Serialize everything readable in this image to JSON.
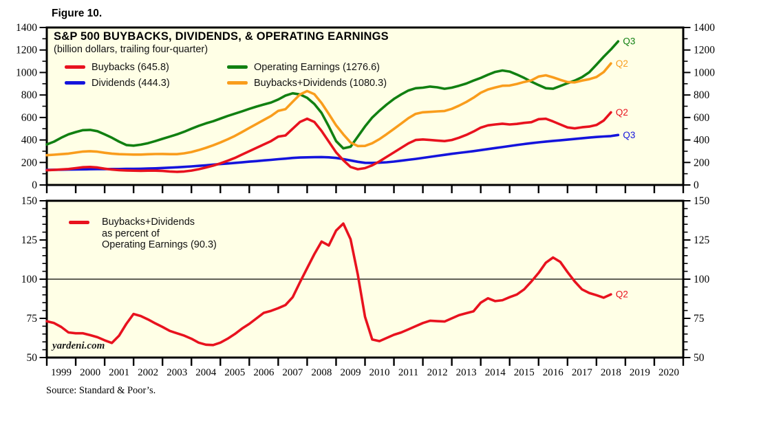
{
  "figure_label": "Figure 10.",
  "watermark": "yardeni.com",
  "source_note": "Source: Standard & Poor’s.",
  "colors": {
    "buybacks": "#E8121E",
    "dividends": "#1414DC",
    "operating_earnings": "#118011",
    "buybacks_plus_dividends": "#F99D1C",
    "plot_background": "#FFFFE6",
    "frame": "#000000"
  },
  "top_chart": {
    "title": "S&P 500 BUYBACKS, DIVIDENDS, & OPERATING EARNINGS",
    "subtitle": "(billion dollars, trailing four-quarter)",
    "legend": [
      {
        "label": "Buybacks (645.8)",
        "color": "#E8121E"
      },
      {
        "label": "Operating Earnings (1276.6)",
        "color": "#118011"
      },
      {
        "label": "Dividends (444.3)",
        "color": "#1414DC"
      },
      {
        "label": "Buybacks+Dividends (1080.3)",
        "color": "#F99D1C"
      }
    ]
  },
  "bottom_chart": {
    "legend_lines": [
      "Buybacks+Dividends",
      "as percent of",
      "Operating Earnings (90.3)"
    ],
    "legend_color": "#E8121E"
  },
  "chart_data": [
    {
      "type": "line",
      "title": "S&P 500 BUYBACKS, DIVIDENDS, & OPERATING EARNINGS",
      "subtitle": "(billion dollars, trailing four-quarter)",
      "units": "billion dollars, trailing four-quarter",
      "xlim": [
        1999,
        2021
      ],
      "ylim": [
        0,
        1400
      ],
      "ytick_major": 200,
      "ytick_minor": 100,
      "x_start": 1999.0,
      "x_step": 0.25,
      "grid": false,
      "legend_position": "top-left",
      "series": [
        {
          "name": "Operating Earnings",
          "color": "#118011",
          "end_label": "Q3",
          "latest": 1276.6,
          "values": [
            360,
            385,
            420,
            450,
            470,
            487,
            490,
            478,
            450,
            420,
            385,
            355,
            350,
            358,
            372,
            390,
            410,
            430,
            450,
            473,
            500,
            525,
            548,
            567,
            590,
            613,
            634,
            655,
            677,
            697,
            715,
            733,
            760,
            795,
            815,
            805,
            775,
            720,
            640,
            520,
            390,
            325,
            340,
            430,
            520,
            600,
            660,
            715,
            765,
            805,
            840,
            860,
            865,
            875,
            868,
            855,
            865,
            882,
            902,
            928,
            952,
            980,
            1005,
            1018,
            1008,
            982,
            952,
            918,
            888,
            860,
            855,
            880,
            905,
            928,
            958,
            1002,
            1070,
            1140,
            1205,
            1276.6
          ]
        },
        {
          "name": "Buybacks+Dividends",
          "color": "#F99D1C",
          "end_label": "Q2",
          "latest": 1080.3,
          "values": [
            265,
            269,
            274,
            279,
            288,
            297,
            300,
            296,
            286,
            279,
            274,
            272,
            270,
            270,
            273,
            275,
            276,
            274,
            274,
            281,
            293,
            310,
            330,
            353,
            378,
            406,
            436,
            471,
            507,
            542,
            578,
            613,
            659,
            674,
            740,
            804,
            835,
            807,
            728,
            631,
            530,
            450,
            378,
            346,
            347,
            371,
            408,
            452,
            498,
            546,
            594,
            632,
            646,
            650,
            654,
            658,
            677,
            705,
            738,
            776,
            820,
            849,
            866,
            882,
            884,
            898,
            916,
            930,
            964,
            975,
            957,
            935,
            915,
            912,
            928,
            940,
            960,
            1004,
            1080.3
          ]
        },
        {
          "name": "Dividends",
          "color": "#1414DC",
          "end_label": "Q3",
          "latest": 444.3,
          "values": [
            134,
            135,
            136,
            137,
            138,
            139,
            140,
            141,
            141,
            142,
            142,
            143,
            143,
            144,
            146,
            148,
            151,
            154,
            157,
            161,
            165,
            170,
            175,
            181,
            186,
            191,
            196,
            201,
            207,
            212,
            218,
            223,
            229,
            234,
            240,
            244,
            246,
            247,
            248,
            246,
            240,
            230,
            218,
            206,
            197,
            196,
            198,
            202,
            208,
            216,
            224,
            232,
            241,
            250,
            259,
            268,
            277,
            285,
            293,
            301,
            310,
            319,
            328,
            337,
            346,
            355,
            364,
            372,
            379,
            386,
            392,
            397,
            403,
            409,
            415,
            421,
            427,
            431,
            434.5,
            444.3
          ]
        },
        {
          "name": "Buybacks",
          "color": "#E8121E",
          "end_label": "Q2",
          "latest": 645.8,
          "values": [
            131,
            134,
            138,
            142,
            150,
            158,
            160,
            155,
            145,
            137,
            132,
            129,
            127,
            126,
            127,
            127,
            125,
            120,
            117,
            120,
            128,
            140,
            155,
            172,
            192,
            215,
            240,
            270,
            300,
            330,
            360,
            390,
            430,
            440,
            500,
            560,
            589,
            560,
            480,
            385,
            290,
            220,
            160,
            140,
            150,
            175,
            210,
            250,
            290,
            330,
            370,
            400,
            405,
            400,
            395,
            390,
            400,
            420,
            445,
            475,
            510,
            530,
            538,
            545,
            538,
            543,
            552,
            558,
            585,
            589,
            565,
            538,
            512,
            503,
            513,
            519,
            533,
            573,
            645.8
          ]
        }
      ]
    },
    {
      "type": "line",
      "title": "Buybacks+Dividends as percent of Operating Earnings",
      "units": "percent",
      "xlim": [
        1999,
        2021
      ],
      "ylim": [
        50,
        150
      ],
      "ytick_major": 25,
      "ytick_minor": 5,
      "x_start": 1999.0,
      "x_step": 0.25,
      "reference_line": 100,
      "grid": false,
      "legend_position": "top-left",
      "x_year_labels": [
        "1999",
        "2000",
        "2001",
        "2002",
        "2003",
        "2004",
        "2005",
        "2006",
        "2007",
        "2008",
        "2009",
        "2010",
        "2011",
        "2012",
        "2013",
        "2014",
        "2015",
        "2016",
        "2017",
        "2018",
        "2019",
        "2020"
      ],
      "series": [
        {
          "name": "Buybacks+Dividends as percent of Operating Earnings",
          "color": "#E8121E",
          "end_label": "Q2",
          "latest": 90.3,
          "values": [
            73.1,
            72.0,
            69.5,
            66.0,
            65.5,
            65.5,
            64.3,
            63.0,
            61.0,
            59.3,
            64.0,
            71.5,
            77.8,
            76.5,
            74.3,
            71.8,
            69.5,
            67.0,
            65.5,
            64.0,
            62.0,
            59.5,
            58.2,
            58.0,
            59.5,
            62.0,
            65.0,
            68.5,
            71.5,
            75.0,
            78.5,
            79.8,
            81.5,
            83.5,
            88.5,
            98.0,
            107.0,
            116.0,
            124.0,
            121.5,
            131.0,
            135.5,
            125.5,
            103.0,
            76.0,
            61.5,
            60.5,
            62.5,
            64.5,
            66.0,
            68.0,
            70.0,
            72.0,
            73.5,
            73.2,
            73.0,
            75.0,
            77.0,
            78.3,
            79.5,
            85.0,
            87.8,
            86.0,
            86.6,
            88.5,
            90.2,
            93.5,
            98.5,
            104.0,
            110.5,
            113.8,
            111.0,
            104.5,
            98.5,
            93.5,
            91.2,
            89.8,
            88.2,
            90.3
          ]
        }
      ]
    }
  ]
}
